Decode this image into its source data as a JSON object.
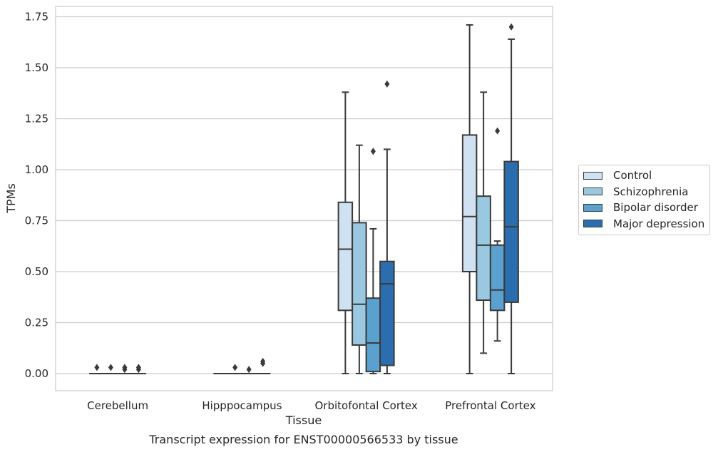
{
  "chart_data": {
    "type": "box",
    "xlabel": "Tissue",
    "ylabel": "TPMs",
    "footer_title": "Transcript expression for ENST00000566533 by tissue",
    "ylim": [
      -0.08,
      1.8
    ],
    "yticks": [
      "0.00",
      "0.25",
      "0.50",
      "0.75",
      "1.00",
      "1.25",
      "1.50",
      "1.75"
    ],
    "grid": "horizontal",
    "legend_position": "right, outside plot",
    "categories": [
      "Cerebellum",
      "Hipppocampus",
      "Orbitofontal Cortex",
      "Prefrontal Cortex"
    ],
    "series": [
      {
        "name": "Control",
        "color": "#d0e1f2",
        "boxes": [
          {
            "q1": 0.0,
            "median": 0.0,
            "q3": 0.0,
            "whisker_low": 0.0,
            "whisker_high": 0.0,
            "outliers": [
              0.03
            ]
          },
          {
            "q1": 0.0,
            "median": 0.0,
            "q3": 0.0,
            "whisker_low": 0.0,
            "whisker_high": 0.0,
            "outliers": []
          },
          {
            "q1": 0.31,
            "median": 0.61,
            "q3": 0.84,
            "whisker_low": 0.0,
            "whisker_high": 1.38,
            "outliers": []
          },
          {
            "q1": 0.5,
            "median": 0.77,
            "q3": 1.17,
            "whisker_low": 0.0,
            "whisker_high": 1.71,
            "outliers": []
          }
        ]
      },
      {
        "name": "Schizophrenia",
        "color": "#9ac8e0",
        "boxes": [
          {
            "q1": 0.0,
            "median": 0.0,
            "q3": 0.0,
            "whisker_low": 0.0,
            "whisker_high": 0.0,
            "outliers": [
              0.03
            ]
          },
          {
            "q1": 0.0,
            "median": 0.0,
            "q3": 0.0,
            "whisker_low": 0.0,
            "whisker_high": 0.0,
            "outliers": [
              0.03
            ]
          },
          {
            "q1": 0.14,
            "median": 0.34,
            "q3": 0.74,
            "whisker_low": 0.0,
            "whisker_high": 1.12,
            "outliers": []
          },
          {
            "q1": 0.36,
            "median": 0.63,
            "q3": 0.87,
            "whisker_low": 0.1,
            "whisker_high": 1.38,
            "outliers": []
          }
        ]
      },
      {
        "name": "Bipolar disorder",
        "color": "#5aa1cf",
        "boxes": [
          {
            "q1": 0.0,
            "median": 0.0,
            "q3": 0.0,
            "whisker_low": 0.0,
            "whisker_high": 0.0,
            "outliers": [
              0.02,
              0.03
            ]
          },
          {
            "q1": 0.0,
            "median": 0.0,
            "q3": 0.0,
            "whisker_low": 0.0,
            "whisker_high": 0.0,
            "outliers": [
              0.02
            ]
          },
          {
            "q1": 0.01,
            "median": 0.15,
            "q3": 0.37,
            "whisker_low": 0.0,
            "whisker_high": 0.71,
            "outliers": [
              1.09
            ]
          },
          {
            "q1": 0.31,
            "median": 0.41,
            "q3": 0.63,
            "whisker_low": 0.16,
            "whisker_high": 0.65,
            "outliers": [
              1.19
            ]
          }
        ]
      },
      {
        "name": "Major depression",
        "color": "#2b6eaf",
        "boxes": [
          {
            "q1": 0.0,
            "median": 0.0,
            "q3": 0.0,
            "whisker_low": 0.0,
            "whisker_high": 0.0,
            "outliers": [
              0.02,
              0.03
            ]
          },
          {
            "q1": 0.0,
            "median": 0.0,
            "q3": 0.0,
            "whisker_low": 0.0,
            "whisker_high": 0.0,
            "outliers": [
              0.05,
              0.06
            ]
          },
          {
            "q1": 0.04,
            "median": 0.44,
            "q3": 0.55,
            "whisker_low": 0.0,
            "whisker_high": 1.1,
            "outliers": [
              1.42
            ]
          },
          {
            "q1": 0.35,
            "median": 0.72,
            "q3": 1.04,
            "whisker_low": 0.0,
            "whisker_high": 1.64,
            "outliers": [
              1.7
            ]
          }
        ]
      }
    ]
  }
}
